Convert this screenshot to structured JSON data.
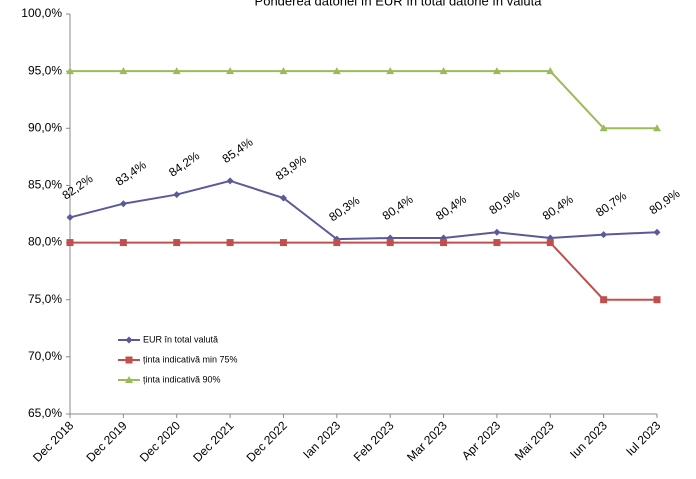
{
  "chart_data": {
    "type": "line",
    "title": "Ponderea datoriei în EUR în total datorie în valută",
    "categories": [
      "Dec 2018",
      "Dec 2019",
      "Dec 2020",
      "Dec 2021",
      "Dec 2022",
      "Ian 2023",
      "Feb 2023",
      "Mar 2023",
      "Apr 2023",
      "Mai 2023",
      "Iun 2023",
      "Iul 2023"
    ],
    "series": [
      {
        "name": "EUR în total valută",
        "color": "#5a5a9a",
        "marker": "diamond",
        "values": [
          82.2,
          83.4,
          84.2,
          85.4,
          83.9,
          80.3,
          80.4,
          80.4,
          80.9,
          80.4,
          80.7,
          80.9
        ],
        "value_labels": [
          "82,2%",
          "83,4%",
          "84,2%",
          "85,4%",
          "83,9%",
          "80,3%",
          "80,4%",
          "80,4%",
          "80,9%",
          "80,4%",
          "80,7%",
          "80,9%"
        ]
      },
      {
        "name": "ținta indicativă min 75%",
        "color": "#c0504d",
        "marker": "square",
        "values": [
          80,
          80,
          80,
          80,
          80,
          80,
          80,
          80,
          80,
          80,
          75,
          75
        ]
      },
      {
        "name": "ținta indicativă  90%",
        "color": "#9bbb59",
        "marker": "triangle",
        "values": [
          95,
          95,
          95,
          95,
          95,
          95,
          95,
          95,
          95,
          95,
          90,
          90
        ]
      }
    ],
    "ylim": [
      65,
      100
    ],
    "yticks": [
      {
        "value": 65,
        "label": "65,0%"
      },
      {
        "value": 70,
        "label": "70,0%"
      },
      {
        "value": 75,
        "label": "75,0%"
      },
      {
        "value": 80,
        "label": "80,0%"
      },
      {
        "value": 85,
        "label": "85,0%"
      },
      {
        "value": 90,
        "label": "90,0%"
      },
      {
        "value": 95,
        "label": "95,0%"
      },
      {
        "value": 100,
        "label": "100,0%"
      }
    ],
    "grid": false
  }
}
